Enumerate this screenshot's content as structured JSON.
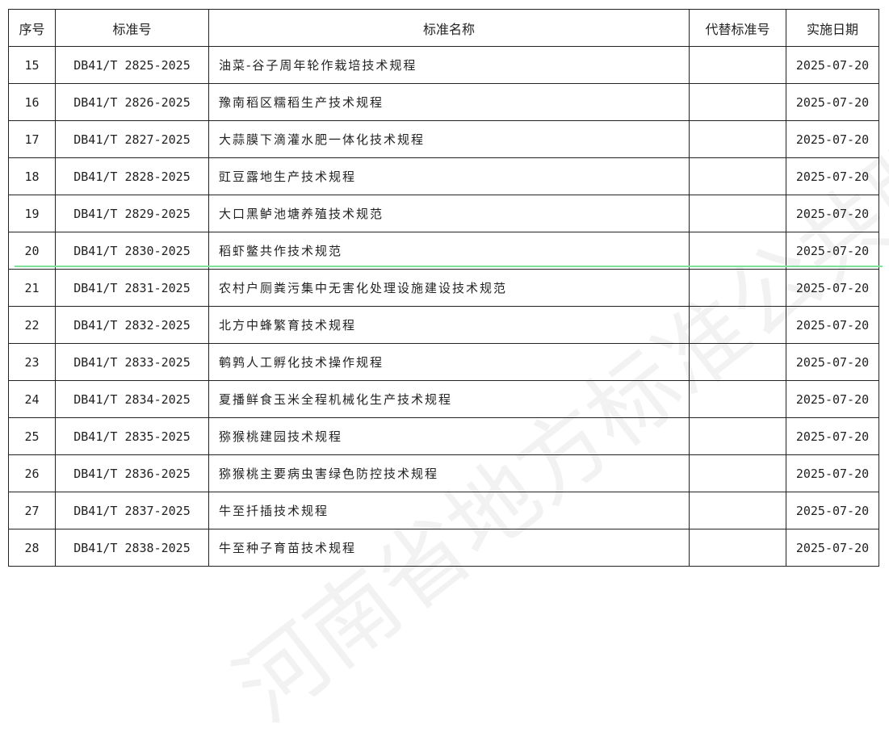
{
  "headers": [
    "序号",
    "标准号",
    "标准名称",
    "代替标准号",
    "实施日期"
  ],
  "rows": [
    [
      "15",
      "DB41/T 2825-2025",
      "油菜-谷子周年轮作栽培技术规程",
      "",
      "2025-07-20"
    ],
    [
      "16",
      "DB41/T 2826-2025",
      "豫南稻区糯稻生产技术规程",
      "",
      "2025-07-20"
    ],
    [
      "17",
      "DB41/T 2827-2025",
      "大蒜膜下滴灌水肥一体化技术规程",
      "",
      "2025-07-20"
    ],
    [
      "18",
      "DB41/T 2828-2025",
      "豇豆露地生产技术规程",
      "",
      "2025-07-20"
    ],
    [
      "19",
      "DB41/T 2829-2025",
      "大口黑鲈池塘养殖技术规范",
      "",
      "2025-07-20"
    ],
    [
      "20",
      "DB41/T 2830-2025",
      "稻虾鳖共作技术规范",
      "",
      "2025-07-20"
    ],
    [
      "21",
      "DB41/T 2831-2025",
      "农村户厕粪污集中无害化处理设施建设技术规范",
      "",
      "2025-07-20"
    ],
    [
      "22",
      "DB41/T 2832-2025",
      "北方中蜂繁育技术规程",
      "",
      "2025-07-20"
    ],
    [
      "23",
      "DB41/T 2833-2025",
      "鹌鹑人工孵化技术操作规程",
      "",
      "2025-07-20"
    ],
    [
      "24",
      "DB41/T 2834-2025",
      "夏播鲜食玉米全程机械化生产技术规程",
      "",
      "2025-07-20"
    ],
    [
      "25",
      "DB41/T 2835-2025",
      "猕猴桃建园技术规程",
      "",
      "2025-07-20"
    ],
    [
      "26",
      "DB41/T 2836-2025",
      "猕猴桃主要病虫害绿色防控技术规程",
      "",
      "2025-07-20"
    ],
    [
      "27",
      "DB41/T 2837-2025",
      "牛至扦插技术规程",
      "",
      "2025-07-20"
    ],
    [
      "28",
      "DB41/T 2838-2025",
      "牛至种子育苗技术规程",
      "",
      "2025-07-20"
    ]
  ],
  "watermark": "河南省地方标准公共服务平台",
  "colors": {
    "highlight_line": "#7ee39a"
  }
}
